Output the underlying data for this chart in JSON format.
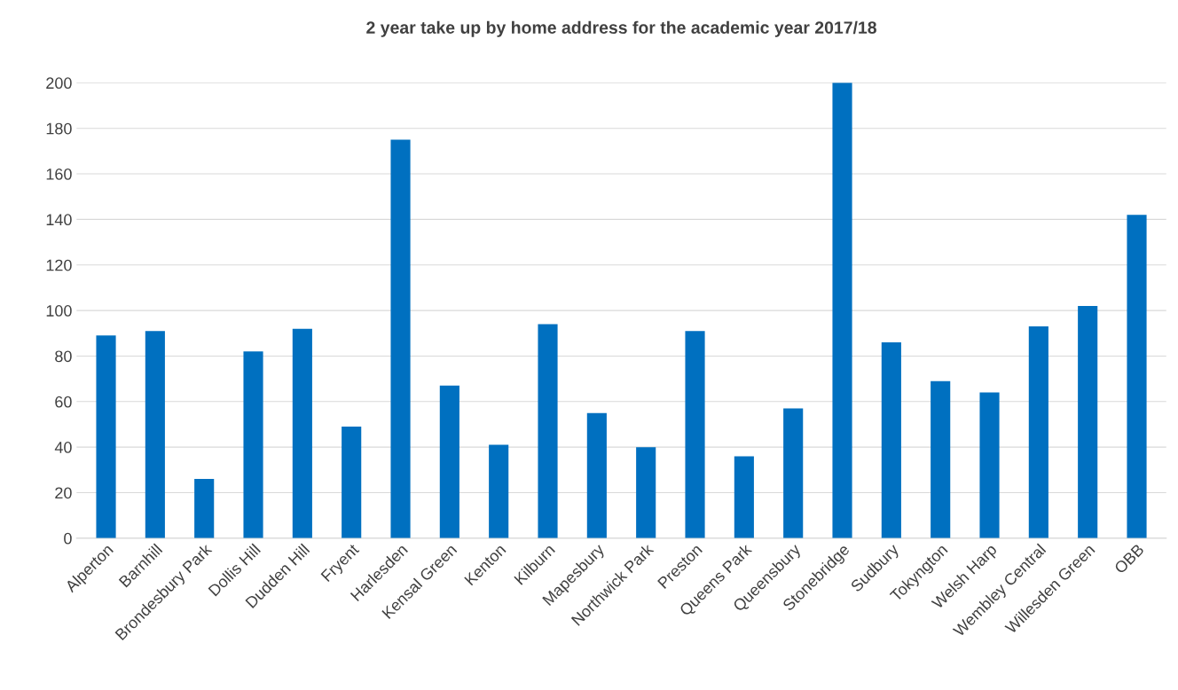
{
  "chart_data": {
    "type": "bar",
    "title": "2 year take up by home address for the academic year 2017/18",
    "categories": [
      "Alperton",
      "Barnhill",
      "Brondesbury Park",
      "Dollis Hill",
      "Dudden Hill",
      "Fryent",
      "Harlesden",
      "Kensal Green",
      "Kenton",
      "Kilburn",
      "Mapesbury",
      "Northwick Park",
      "Preston",
      "Queens Park",
      "Queensbury",
      "Stonebridge",
      "Sudbury",
      "Tokyngton",
      "Welsh Harp",
      "Wembley Central",
      "Willesden Green",
      "OBB"
    ],
    "values": [
      89,
      91,
      26,
      82,
      92,
      49,
      175,
      67,
      41,
      94,
      55,
      40,
      91,
      36,
      57,
      200,
      86,
      69,
      64,
      93,
      102,
      142
    ],
    "color": "#0070c0",
    "ylim": [
      0,
      200
    ],
    "yticks": [
      0,
      20,
      40,
      60,
      80,
      100,
      120,
      140,
      160,
      180,
      200
    ],
    "grid": "y",
    "legend": false
  }
}
